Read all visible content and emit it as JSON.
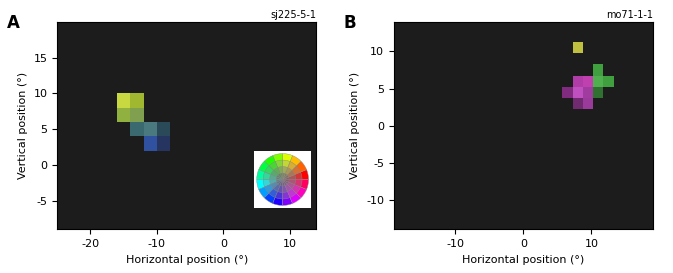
{
  "chart_data": [
    {
      "type": "heatmap",
      "title": "A",
      "annotation": "sj225-5-1",
      "x_label": "Horizontal position (°)",
      "y_label": "Vertical position (°)",
      "xlim": [
        -25,
        14
      ],
      "ylim": [
        -9,
        20
      ],
      "xticks": [
        -20,
        -10,
        0,
        10
      ],
      "yticks": [
        -5,
        0,
        5,
        10,
        15
      ],
      "color": "#1c1c1c",
      "cell_size": 2,
      "cells": [
        {
          "x": -15,
          "y": 9,
          "color": "#c8d840"
        },
        {
          "x": -13,
          "y": 9,
          "color": "#a0b830"
        },
        {
          "x": -15,
          "y": 7,
          "color": "#90b040"
        },
        {
          "x": -13,
          "y": 7,
          "color": "#80a050"
        },
        {
          "x": -13,
          "y": 5,
          "color": "#3a6a70"
        },
        {
          "x": -11,
          "y": 5,
          "color": "#4a7a80"
        },
        {
          "x": -9,
          "y": 5,
          "color": "#2a4a5a"
        },
        {
          "x": -11,
          "y": 3,
          "color": "#3050a0"
        },
        {
          "x": -9,
          "y": 3,
          "color": "#253560"
        }
      ]
    },
    {
      "type": "heatmap",
      "title": "B",
      "annotation": "mo71-1-1",
      "x_label": "Horizontal position (°)",
      "y_label": "Vertical position (°)",
      "xlim": [
        -19,
        19
      ],
      "ylim": [
        -14,
        14
      ],
      "xticks": [
        -10,
        0,
        10
      ],
      "yticks": [
        -10,
        -5,
        0,
        5,
        10
      ],
      "color": "#1c1c1c",
      "cell_size": 1.5,
      "cells": [
        {
          "x": 8,
          "y": 10.5,
          "color": "#c0c040"
        },
        {
          "x": 9.5,
          "y": 6,
          "color": "#c040b0"
        },
        {
          "x": 8,
          "y": 6,
          "color": "#b03ca8"
        },
        {
          "x": 8,
          "y": 4.5,
          "color": "#c050c0"
        },
        {
          "x": 9.5,
          "y": 4.5,
          "color": "#a03ca0"
        },
        {
          "x": 6.5,
          "y": 4.5,
          "color": "#802a80"
        },
        {
          "x": 9.5,
          "y": 3,
          "color": "#9a3a9a"
        },
        {
          "x": 8,
          "y": 3,
          "color": "#702a70"
        },
        {
          "x": 11,
          "y": 6,
          "color": "#50b050"
        },
        {
          "x": 12.5,
          "y": 6,
          "color": "#40a040"
        },
        {
          "x": 11,
          "y": 7.5,
          "color": "#40a040"
        },
        {
          "x": 11,
          "y": 4.5,
          "color": "#307030"
        }
      ]
    }
  ]
}
